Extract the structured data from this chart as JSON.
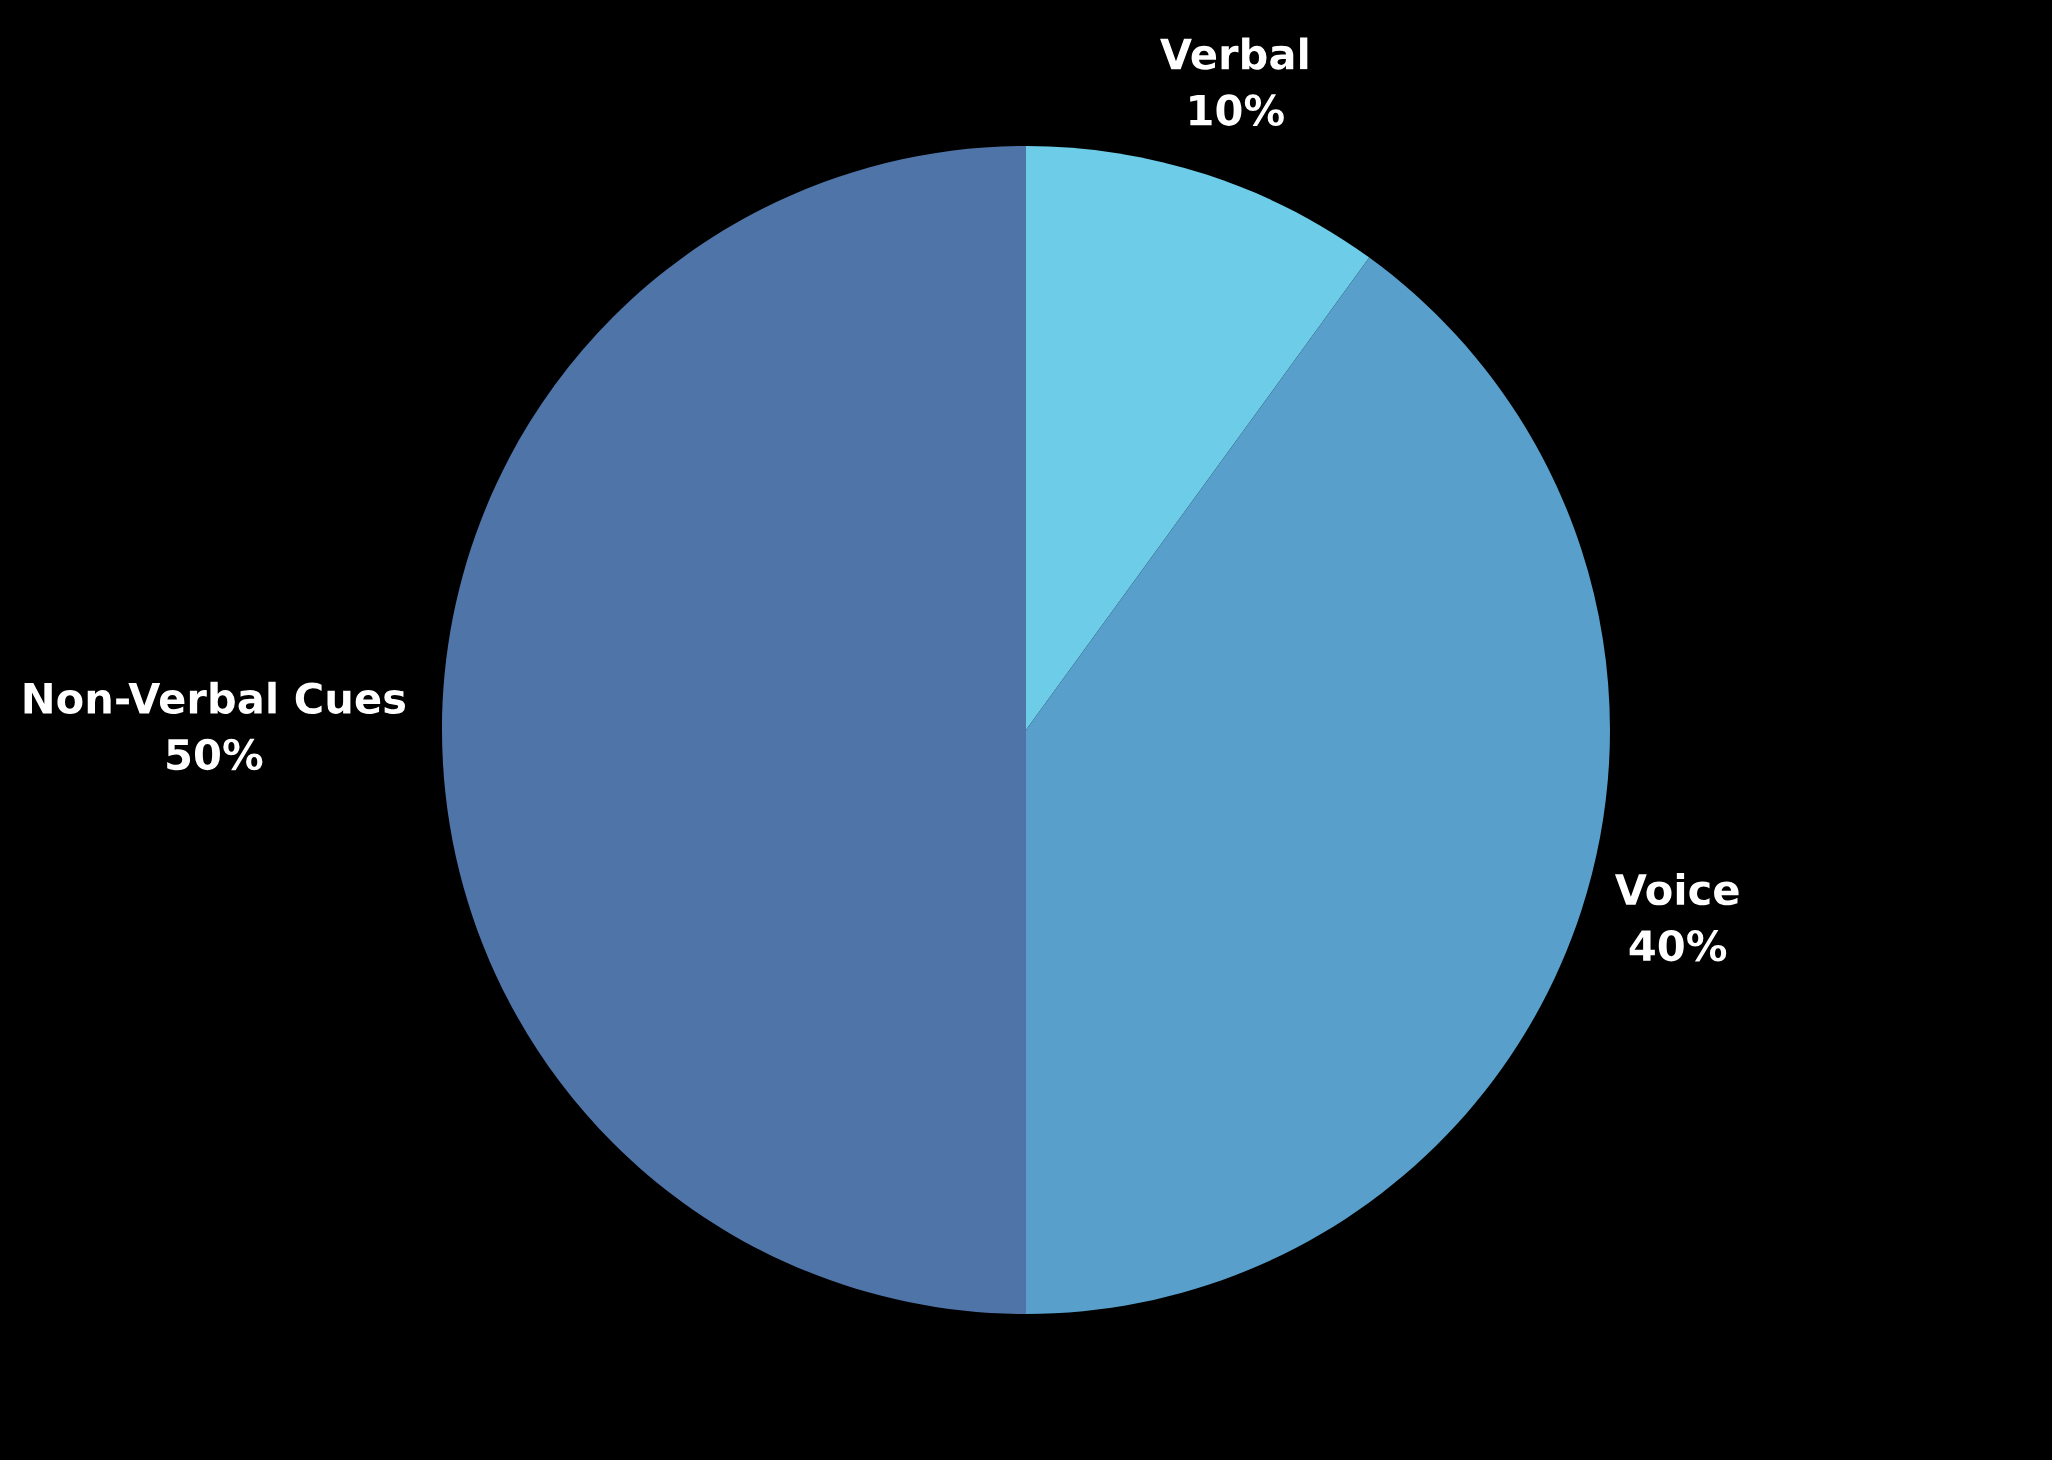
{
  "chart_data": {
    "type": "pie",
    "categories": [
      "Verbal",
      "Voice",
      "Non-Verbal Cues"
    ],
    "values": [
      10,
      40,
      50
    ],
    "colors": [
      "#6dcde8",
      "#58a0cb",
      "#4f74a8"
    ],
    "value_labels": [
      "10%",
      "40%",
      "50%"
    ]
  }
}
